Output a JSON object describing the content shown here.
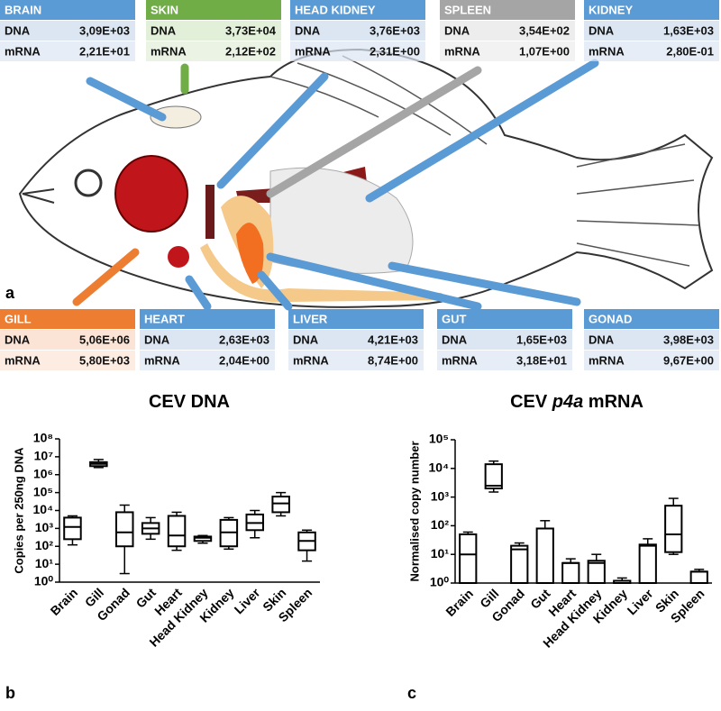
{
  "panel_labels": [
    "a",
    "b",
    "c"
  ],
  "organ_tables": [
    {
      "title": "BRAIN",
      "color": "#5b9bd5",
      "row_color": "#dce6f2",
      "rows": [
        [
          "DNA",
          "3,09E+03"
        ],
        [
          "mRNA",
          "2,21E+01"
        ]
      ]
    },
    {
      "title": "SKIN",
      "color": "#70ad47",
      "row_color": "#e2efd9",
      "rows": [
        [
          "DNA",
          "3,73E+04"
        ],
        [
          "mRNA",
          "2,12E+02"
        ]
      ]
    },
    {
      "title": "HEAD KIDNEY",
      "color": "#5b9bd5",
      "row_color": "#dce6f2",
      "rows": [
        [
          "DNA",
          "3,76E+03"
        ],
        [
          "mRNA",
          "2,31E+00"
        ]
      ]
    },
    {
      "title": "SPLEEN",
      "color": "#a5a5a5",
      "row_color": "#ededed",
      "rows": [
        [
          "DNA",
          "3,54E+02"
        ],
        [
          "mRNA",
          "1,07E+00"
        ]
      ]
    },
    {
      "title": "KIDNEY",
      "color": "#5b9bd5",
      "row_color": "#dce6f2",
      "rows": [
        [
          "DNA",
          "1,63E+03"
        ],
        [
          "mRNA",
          "2,80E-01"
        ]
      ]
    },
    {
      "title": "GILL",
      "color": "#ed7d31",
      "row_color": "#fbe4d5",
      "rows": [
        [
          "DNA",
          "5,06E+06"
        ],
        [
          "mRNA",
          "5,80E+03"
        ]
      ]
    },
    {
      "title": "HEART",
      "color": "#5b9bd5",
      "row_color": "#dce6f2",
      "rows": [
        [
          "DNA",
          "2,63E+03"
        ],
        [
          "mRNA",
          "2,04E+00"
        ]
      ]
    },
    {
      "title": "LIVER",
      "color": "#5b9bd5",
      "row_color": "#dce6f2",
      "rows": [
        [
          "DNA",
          "4,21E+03"
        ],
        [
          "mRNA",
          "8,74E+00"
        ]
      ]
    },
    {
      "title": "GUT",
      "color": "#5b9bd5",
      "row_color": "#dce6f2",
      "rows": [
        [
          "DNA",
          "1,65E+03"
        ],
        [
          "mRNA",
          "3,18E+01"
        ]
      ]
    },
    {
      "title": "GONAD",
      "color": "#5b9bd5",
      "row_color": "#dce6f2",
      "rows": [
        [
          "DNA",
          "3,98E+03"
        ],
        [
          "mRNA",
          "9,67E+00"
        ]
      ]
    }
  ],
  "chart_data": [
    {
      "type": "box",
      "title": [
        "CEV DNA"
      ],
      "title_italic": [
        false
      ],
      "y_label": "Copies per 250ng DNA",
      "log_scale": true,
      "ylim": [
        1,
        100000000
      ],
      "yticks": [
        {
          "value": 1,
          "label": "10⁰"
        },
        {
          "value": 10,
          "label": "10¹"
        },
        {
          "value": 100,
          "label": "10²"
        },
        {
          "value": 1000,
          "label": "10³"
        },
        {
          "value": 10000,
          "label": "10⁴"
        },
        {
          "value": 100000,
          "label": "10⁵"
        },
        {
          "value": 1000000,
          "label": "10⁶"
        },
        {
          "value": 10000000,
          "label": "10⁷"
        },
        {
          "value": 100000000,
          "label": "10⁸"
        }
      ],
      "categories": [
        "Brain",
        "Gill",
        "Gonad",
        "Gut",
        "Heart",
        "Head Kidney",
        "Kidney",
        "Liver",
        "Skin",
        "Spleen"
      ],
      "boxes": [
        {
          "min": 120,
          "q1": 250,
          "median": 1200,
          "q3": 4000,
          "max": 5000
        },
        {
          "min": 2500000,
          "q1": 3000000,
          "median": 4000000,
          "q3": 5000000,
          "max": 7000000
        },
        {
          "min": 3,
          "q1": 100,
          "median": 600,
          "q3": 8000,
          "max": 20000
        },
        {
          "min": 250,
          "q1": 500,
          "median": 1000,
          "q3": 2000,
          "max": 4000
        },
        {
          "min": 60,
          "q1": 100,
          "median": 400,
          "q3": 5000,
          "max": 8000
        },
        {
          "min": 150,
          "q1": 200,
          "median": 300,
          "q3": 350,
          "max": 400
        },
        {
          "min": 70,
          "q1": 100,
          "median": 600,
          "q3": 3000,
          "max": 4000
        },
        {
          "min": 300,
          "q1": 800,
          "median": 2000,
          "q3": 6000,
          "max": 10000
        },
        {
          "min": 5000,
          "q1": 8000,
          "median": 25000,
          "q3": 60000,
          "max": 100000
        },
        {
          "min": 15,
          "q1": 60,
          "median": 200,
          "q3": 600,
          "max": 800
        }
      ]
    },
    {
      "type": "box",
      "title": [
        "CEV",
        "p4a",
        "mRNA"
      ],
      "title_italic": [
        false,
        true,
        false
      ],
      "y_label": "Normalised copy number",
      "log_scale": true,
      "ylim": [
        1,
        100000
      ],
      "yticks": [
        {
          "value": 1,
          "label": "10⁰"
        },
        {
          "value": 10,
          "label": "10¹"
        },
        {
          "value": 100,
          "label": "10²"
        },
        {
          "value": 1000,
          "label": "10³"
        },
        {
          "value": 10000,
          "label": "10⁴"
        },
        {
          "value": 100000,
          "label": "10⁵"
        }
      ],
      "categories": [
        "Brain",
        "Gill",
        "Gonad",
        "Gut",
        "Heart",
        "Head Kidney",
        "Kidney",
        "Liver",
        "Skin",
        "Spleen"
      ],
      "boxes": [
        {
          "min": 1,
          "q1": 1,
          "median": 10,
          "q3": 50,
          "max": 60
        },
        {
          "min": 1500,
          "q1": 2000,
          "median": 2500,
          "q3": 14000,
          "max": 18000
        },
        {
          "min": 1,
          "q1": 1,
          "median": 15,
          "q3": 20,
          "max": 25
        },
        {
          "min": 1,
          "q1": 1,
          "median": 80,
          "q3": 80,
          "max": 150
        },
        {
          "min": 1,
          "q1": 1,
          "median": 5,
          "q3": 5,
          "max": 7
        },
        {
          "min": 1,
          "q1": 1,
          "median": 5,
          "q3": 6,
          "max": 10
        },
        {
          "min": 1,
          "q1": 1,
          "median": 1,
          "q3": 1.2,
          "max": 1.5
        },
        {
          "min": 1,
          "q1": 1,
          "median": 20,
          "q3": 22,
          "max": 35
        },
        {
          "min": 10,
          "q1": 12,
          "median": 50,
          "q3": 500,
          "max": 900
        },
        {
          "min": 1,
          "q1": 1,
          "median": 2.5,
          "q3": 2.5,
          "max": 3
        }
      ]
    }
  ]
}
